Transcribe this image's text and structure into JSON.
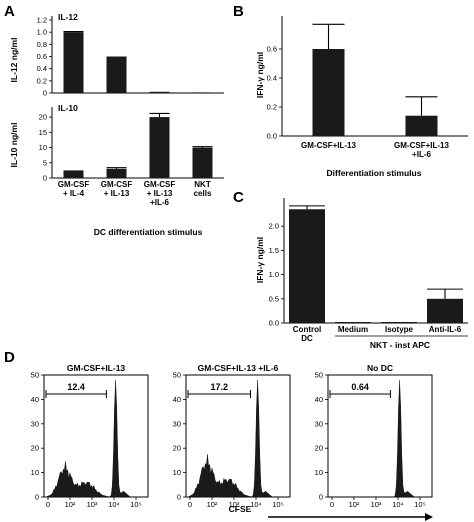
{
  "panels": [
    {
      "id": "A",
      "letter": "A"
    },
    {
      "id": "B",
      "letter": "B"
    },
    {
      "id": "C",
      "letter": "C"
    },
    {
      "id": "D",
      "letter": "D"
    }
  ],
  "chart_data": [
    {
      "panel": "A-top",
      "type": "bar",
      "inset_label": "IL-12",
      "ylabel": "IL-12 ng/ml",
      "yticks": [
        "0",
        "0.2",
        "0.4",
        "0.6",
        "0.8",
        "1.0",
        "1.2"
      ],
      "ylim": [
        0,
        1.2
      ],
      "categories": [
        "GM-CSF + IL-4",
        "GM-CSF + IL-13",
        "GM-CSF + IL-13 +IL-6",
        "NKT cells"
      ],
      "values": [
        1.0,
        0.6,
        0.02,
        0.01
      ],
      "errors": [
        0.01,
        0.0,
        0.0,
        0.0
      ]
    },
    {
      "panel": "A-bottom",
      "type": "bar",
      "inset_label": "IL-10",
      "ylabel": "IL-10 ng/ml",
      "yticks": [
        "0",
        "5",
        "10",
        "15",
        "20"
      ],
      "ylim": [
        0,
        22
      ],
      "categories": [
        "GM-CSF + IL-4",
        "GM-CSF + IL-13",
        "GM-CSF + IL-13 +IL-6",
        "NKT cells"
      ],
      "category_lines": [
        [
          "GM-CSF",
          "+ IL-4"
        ],
        [
          "GM-CSF",
          "+ IL-13"
        ],
        [
          "GM-CSF",
          "+ IL-13",
          "+IL-6"
        ],
        [
          "NKT",
          "cells"
        ]
      ],
      "values": [
        2.5,
        3.0,
        20.0,
        10.0
      ],
      "errors": [
        0.0,
        0.4,
        1.2,
        0.3
      ],
      "xlabel": "DC differentiation stimulus"
    },
    {
      "panel": "B",
      "type": "bar",
      "ylabel": "IFN-γ ng/ml",
      "yticks": [
        "0.0",
        "0.2",
        "0.4",
        "0.6"
      ],
      "ylim": [
        0,
        0.8
      ],
      "categories": [
        "GM-CSF+IL-13",
        "GM-CSF+IL-13 +IL-6"
      ],
      "category_lines": [
        [
          "GM-CSF+IL-13"
        ],
        [
          "GM-CSF+IL-13",
          "+IL-6"
        ]
      ],
      "values": [
        0.6,
        0.14
      ],
      "errors": [
        0.17,
        0.13
      ],
      "xlabel": "Differentiation stimulus"
    },
    {
      "panel": "C",
      "type": "bar",
      "ylabel": "IFN-γ ng/ml",
      "yticks": [
        "0.0",
        "0.5",
        "1.0",
        "1.5",
        "2.0"
      ],
      "ylim": [
        0,
        2.5
      ],
      "categories": [
        "Control DC",
        "Medium",
        "Isotype",
        "Anti-IL-6"
      ],
      "category_lines": [
        [
          "Control",
          "DC"
        ],
        [
          "Medium"
        ],
        [
          "Isotype"
        ],
        [
          "Anti-IL-6"
        ]
      ],
      "values": [
        2.35,
        0.0,
        0.0,
        0.5
      ],
      "errors": [
        0.07,
        0.0,
        0.0,
        0.2
      ],
      "group_label": "NKT - inst APC"
    },
    {
      "panel": "D",
      "type": "area",
      "xlabel": "CFSE",
      "xticks": [
        "0",
        "10²",
        "10³",
        "10⁴",
        "10⁵"
      ],
      "yticks": [
        "0",
        "10",
        "20",
        "30",
        "40",
        "50"
      ],
      "ylim": [
        0,
        50
      ],
      "histograms": [
        {
          "title": "GM-CSF+IL-13",
          "gate_label": "12.4"
        },
        {
          "title": "GM-CSF+IL-13 +IL-6",
          "gate_label": "17.2"
        },
        {
          "title": "No DC",
          "gate_label": "0.64"
        }
      ]
    }
  ]
}
